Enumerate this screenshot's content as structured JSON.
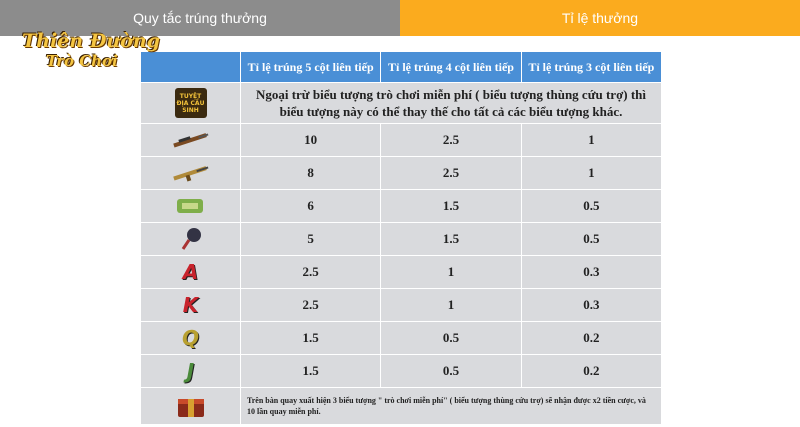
{
  "logo": {
    "line1": "Thiên Đường",
    "line2": "Trò Chơi"
  },
  "tabs": [
    {
      "label": "Quy tắc trúng thưởng",
      "active": false
    },
    {
      "label": "Tỉ lệ thưởng",
      "active": true
    }
  ],
  "table": {
    "headers": [
      "Tỉ lệ trúng 5 cột liên tiếp",
      "Tỉ lệ trúng 4 cột liên tiếp",
      "Tỉ lệ trúng 3 cột liên tiếp"
    ],
    "wild": {
      "icon_text": "TUYỆT ĐỊA CẦU SINH",
      "text": "Ngoại trừ biểu tượng trò chơi miễn phí ( biểu tượng thùng cứu trợ) thì biểu tượng này có thể thay thế cho tất cả các biểu tượng khác."
    },
    "rows": [
      {
        "values": [
          10,
          2.5,
          1
        ]
      },
      {
        "values": [
          8,
          2.5,
          1
        ]
      },
      {
        "values": [
          6,
          1.5,
          0.5
        ]
      },
      {
        "values": [
          5,
          1.5,
          0.5
        ]
      },
      {
        "icon": "A",
        "values": [
          2.5,
          1,
          0.3
        ]
      },
      {
        "icon": "K",
        "values": [
          2.5,
          1,
          0.3
        ]
      },
      {
        "icon": "Q",
        "values": [
          1.5,
          0.5,
          0.2
        ]
      },
      {
        "icon": "J",
        "values": [
          1.5,
          0.5,
          0.2
        ]
      }
    ],
    "scatter": {
      "text": "Trên bàn quay xuất hiện 3 biểu tượng \" trò chơi miễn phí\" ( biểu tượng thùng cứu trợ) sẽ nhận được x2 tiền cược, và 10 lần quay miễn phí."
    }
  }
}
